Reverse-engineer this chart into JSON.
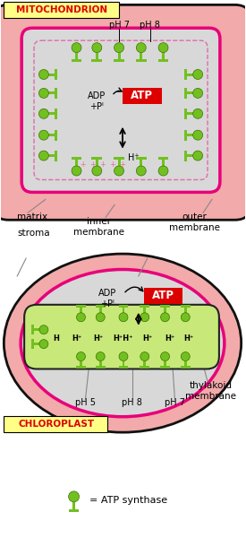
{
  "bg_color": "#ffffff",
  "mito_label": "MITOCHONDRION",
  "chloro_label": "CHLOROPLAST",
  "legend_label": "= ATP synthase",
  "pink": "#f2aaaa",
  "light_gray": "#d8d8d8",
  "magenta": "#e8007a",
  "thylakoid_green": "#c8e87a",
  "green_color": "#72c020",
  "dark_green": "#3a7000",
  "red_bg": "#dd0000",
  "yellow_bg": "#ffff88",
  "red_text": "#dd0000",
  "black": "#111111",
  "pink_plus": "#e87090"
}
